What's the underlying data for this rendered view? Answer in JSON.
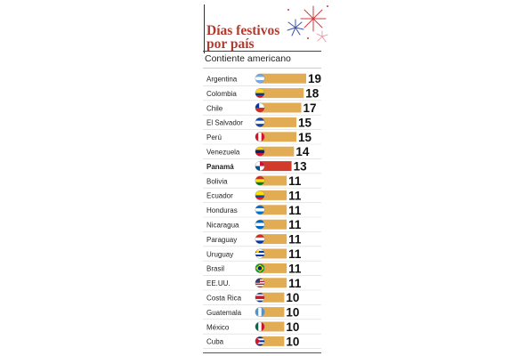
{
  "header": {
    "title_line1": "Días festivos",
    "title_line2": "por país",
    "subtitle": "Contiente americano"
  },
  "colors": {
    "bar": "#e2ac54",
    "bar_highlight": "#d23b2a",
    "title": "#b03a2e",
    "value_text": "#111111",
    "row_divider": "#d9d9d9"
  },
  "chart_data": {
    "type": "bar",
    "orientation": "horizontal",
    "title": "Días festivos por país",
    "subtitle": "Contiente americano",
    "categories": [
      "Argentina",
      "Colombia",
      "Chile",
      "El Salvador",
      "Perú",
      "Venezuela",
      "Panamá",
      "Bolivia",
      "Ecuador",
      "Honduras",
      "Nicaragua",
      "Paraguay",
      "Uruguay",
      "Brasil",
      "EE.UU.",
      "Costa Rica",
      "Guatemala",
      "México",
      "Cuba"
    ],
    "values": [
      19,
      18,
      17,
      15,
      15,
      14,
      13,
      11,
      11,
      11,
      11,
      11,
      11,
      11,
      11,
      10,
      10,
      10,
      10
    ],
    "highlight": "Panamá",
    "flag_icons": [
      "argentina-flag-icon",
      "colombia-flag-icon",
      "chile-flag-icon",
      "el-salvador-flag-icon",
      "peru-flag-icon",
      "venezuela-flag-icon",
      "panama-flag-icon",
      "bolivia-flag-icon",
      "ecuador-flag-icon",
      "honduras-flag-icon",
      "nicaragua-flag-icon",
      "paraguay-flag-icon",
      "uruguay-flag-icon",
      "brazil-flag-icon",
      "usa-flag-icon",
      "costa-rica-flag-icon",
      "guatemala-flag-icon",
      "mexico-flag-icon",
      "cuba-flag-icon"
    ],
    "xlim": [
      0,
      19
    ],
    "grid": false,
    "legend": "none",
    "xlabel": "",
    "ylabel": ""
  }
}
